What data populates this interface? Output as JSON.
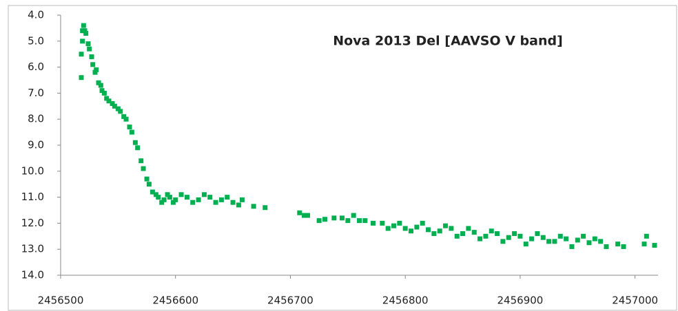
{
  "chart_data": {
    "type": "scatter",
    "title": "Nova 2013 Del [AAVSO V band]",
    "color": "#00b050",
    "x": [
      2456518,
      2456518,
      2456519,
      2456519,
      2456520,
      2456521,
      2456522,
      2456524,
      2456525,
      2456527,
      2456528,
      2456530,
      2456531,
      2456533,
      2456535,
      2456536,
      2456538,
      2456540,
      2456542,
      2456545,
      2456547,
      2456550,
      2456552,
      2456555,
      2456557,
      2456560,
      2456562,
      2456565,
      2456567,
      2456570,
      2456572,
      2456575,
      2456577,
      2456580,
      2456583,
      2456585,
      2456588,
      2456590,
      2456593,
      2456595,
      2456598,
      2456600,
      2456605,
      2456610,
      2456615,
      2456620,
      2456625,
      2456630,
      2456635,
      2456640,
      2456645,
      2456650,
      2456655,
      2456658,
      2456668,
      2456678,
      2456708,
      2456712,
      2456715,
      2456725,
      2456730,
      2456738,
      2456745,
      2456750,
      2456755,
      2456760,
      2456765,
      2456772,
      2456780,
      2456785,
      2456790,
      2456795,
      2456800,
      2456805,
      2456810,
      2456815,
      2456820,
      2456825,
      2456830,
      2456835,
      2456840,
      2456845,
      2456850,
      2456855,
      2456860,
      2456865,
      2456870,
      2456875,
      2456880,
      2456885,
      2456890,
      2456895,
      2456900,
      2456905,
      2456910,
      2456915,
      2456920,
      2456925,
      2456930,
      2456935,
      2456940,
      2456945,
      2456950,
      2456955,
      2456960,
      2456965,
      2456970,
      2456975,
      2456985,
      2456990,
      2457008,
      2457010,
      2457017
    ],
    "values": [
      6.4,
      5.5,
      4.6,
      5.0,
      4.4,
      4.6,
      4.7,
      5.1,
      5.3,
      5.6,
      5.9,
      6.2,
      6.1,
      6.6,
      6.7,
      6.9,
      7.0,
      7.2,
      7.3,
      7.4,
      7.5,
      7.6,
      7.7,
      7.9,
      8.0,
      8.3,
      8.5,
      8.9,
      9.1,
      9.6,
      9.9,
      10.3,
      10.5,
      10.8,
      10.9,
      11.0,
      11.2,
      11.1,
      10.9,
      11.0,
      11.2,
      11.1,
      10.9,
      11.0,
      11.2,
      11.1,
      10.9,
      11.0,
      11.2,
      11.1,
      11.0,
      11.2,
      11.3,
      11.1,
      11.35,
      11.4,
      11.6,
      11.7,
      11.7,
      11.9,
      11.85,
      11.8,
      11.8,
      11.9,
      11.7,
      11.9,
      11.9,
      12.0,
      12.0,
      12.2,
      12.1,
      12.0,
      12.2,
      12.3,
      12.15,
      12.0,
      12.25,
      12.4,
      12.3,
      12.1,
      12.2,
      12.5,
      12.4,
      12.2,
      12.35,
      12.6,
      12.5,
      12.3,
      12.4,
      12.7,
      12.55,
      12.4,
      12.5,
      12.8,
      12.6,
      12.4,
      12.55,
      12.7,
      12.7,
      12.5,
      12.6,
      12.9,
      12.65,
      12.5,
      12.75,
      12.6,
      12.7,
      12.9,
      12.8,
      12.9,
      12.8,
      12.5,
      12.85
    ],
    "xlim": [
      2456500,
      2457020
    ],
    "xticks": [
      2456500,
      2456600,
      2456700,
      2456800,
      2456900,
      2457000
    ],
    "ylim": [
      4,
      14
    ],
    "y_inverted": true,
    "yticks": [
      {
        "value": 4,
        "label": "4.0"
      },
      {
        "value": 5,
        "label": "5.0"
      },
      {
        "value": 6,
        "label": "6.0"
      },
      {
        "value": 7,
        "label": "7.0"
      },
      {
        "value": 8,
        "label": "8.0"
      },
      {
        "value": 9,
        "label": "9.0"
      },
      {
        "value": 10,
        "label": "10.0"
      },
      {
        "value": 11,
        "label": "11.0"
      },
      {
        "value": 12,
        "label": "12.0"
      },
      {
        "value": 13,
        "label": "13.0"
      },
      {
        "value": 14,
        "label": "14.0"
      }
    ],
    "grid": false
  }
}
